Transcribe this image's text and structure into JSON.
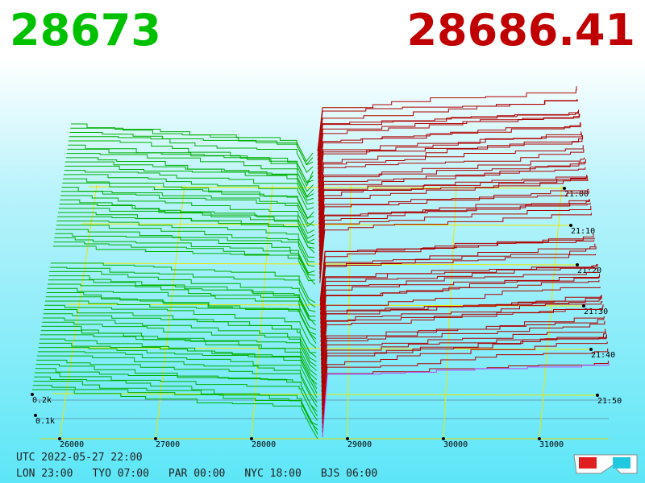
{
  "bid": "28673",
  "ask": "28686.41",
  "price_labels": [
    "26000",
    "27000",
    "28000",
    "29000",
    "30000",
    "31000"
  ],
  "time_labels": [
    "21:00",
    "21:10",
    "21:20",
    "21:30",
    "21:40",
    "21:50"
  ],
  "depth_labels": [
    "0.2k",
    "0.1k"
  ],
  "footer": {
    "utc": "UTC 2022-05-27 22:00",
    "zones": [
      "LON 23:00",
      "TYO 07:00",
      "PAR 00:00",
      "NYC 18:00",
      "BJS 06:00"
    ]
  }
}
